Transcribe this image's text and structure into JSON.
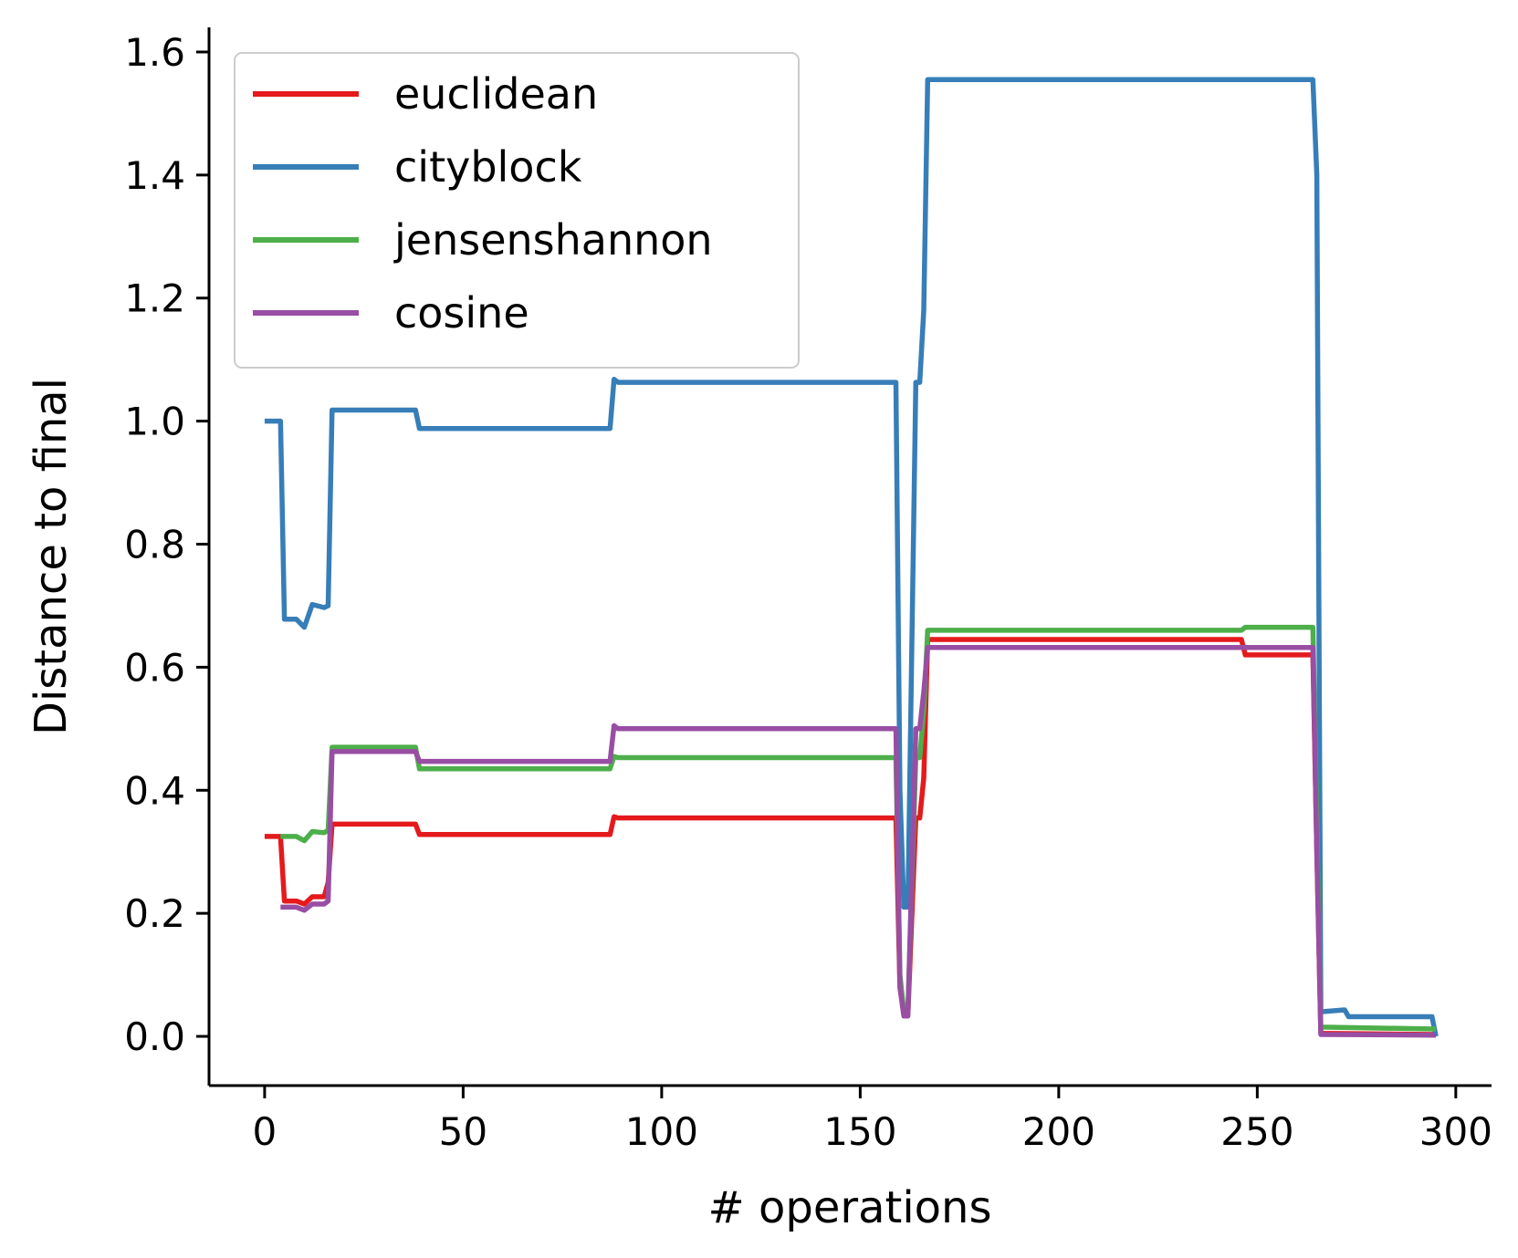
{
  "chart_data": {
    "type": "line",
    "title": "",
    "xlabel": "# operations",
    "ylabel": "Distance to final",
    "xlim": [
      -14,
      309
    ],
    "ylim": [
      -0.08,
      1.64
    ],
    "xticks": [
      0,
      50,
      100,
      150,
      200,
      250,
      300
    ],
    "yticks": [
      0.0,
      0.2,
      0.4,
      0.6,
      0.8,
      1.0,
      1.2,
      1.4,
      1.6
    ],
    "xtick_labels": [
      "0",
      "50",
      "100",
      "150",
      "200",
      "250",
      "300"
    ],
    "ytick_labels": [
      "0.0",
      "0.2",
      "0.4",
      "0.6",
      "0.8",
      "1.0",
      "1.2",
      "1.4",
      "1.6"
    ],
    "grid": false,
    "legend_position": "top-left",
    "series": [
      {
        "name": "euclidean",
        "color": "#e41a1c",
        "x": [
          0,
          4,
          5,
          8,
          10,
          12,
          15,
          16,
          17,
          38,
          39,
          87,
          88,
          89,
          159,
          160,
          161,
          162,
          164,
          165,
          166,
          167,
          246,
          247,
          264,
          265,
          266,
          295
        ],
        "y": [
          0.325,
          0.325,
          0.22,
          0.22,
          0.215,
          0.227,
          0.227,
          0.25,
          0.345,
          0.345,
          0.328,
          0.328,
          0.357,
          0.355,
          0.355,
          0.08,
          0.035,
          0.035,
          0.355,
          0.355,
          0.42,
          0.645,
          0.645,
          0.62,
          0.62,
          0.3,
          0.005,
          0.003
        ]
      },
      {
        "name": "cityblock",
        "color": "#377eb8",
        "x": [
          0,
          4,
          5,
          8,
          10,
          12,
          15,
          16,
          17,
          38,
          39,
          87,
          88,
          89,
          159,
          160,
          161,
          162,
          164,
          165,
          166,
          167,
          264,
          265,
          266,
          272,
          273,
          294,
          295
        ],
        "y": [
          1.0,
          1.0,
          0.678,
          0.678,
          0.665,
          0.702,
          0.697,
          0.7,
          1.018,
          1.018,
          0.988,
          0.988,
          1.068,
          1.063,
          1.063,
          0.4,
          0.21,
          0.21,
          1.063,
          1.063,
          1.18,
          1.555,
          1.555,
          1.4,
          0.04,
          0.043,
          0.032,
          0.032,
          0.0
        ]
      },
      {
        "name": "jensenshannon",
        "color": "#4daf4a",
        "x": [
          4,
          8,
          10,
          12,
          15,
          16,
          17,
          38,
          39,
          87,
          88,
          89,
          159,
          160,
          161,
          162,
          164,
          165,
          166,
          167,
          246,
          247,
          264,
          265,
          266,
          295
        ],
        "y": [
          0.325,
          0.325,
          0.318,
          0.333,
          0.331,
          0.335,
          0.47,
          0.47,
          0.435,
          0.435,
          0.455,
          0.453,
          0.453,
          0.1,
          0.04,
          0.04,
          0.453,
          0.453,
          0.53,
          0.66,
          0.66,
          0.665,
          0.665,
          0.35,
          0.015,
          0.012
        ]
      },
      {
        "name": "cosine",
        "color": "#984ea3",
        "x": [
          4,
          8,
          10,
          12,
          15,
          16,
          17,
          38,
          39,
          87,
          88,
          89,
          159,
          160,
          161,
          162,
          164,
          165,
          166,
          167,
          264,
          265,
          266,
          295
        ],
        "y": [
          0.21,
          0.21,
          0.205,
          0.215,
          0.215,
          0.22,
          0.463,
          0.463,
          0.447,
          0.447,
          0.505,
          0.5,
          0.5,
          0.08,
          0.033,
          0.033,
          0.5,
          0.5,
          0.56,
          0.632,
          0.632,
          0.3,
          0.003,
          0.002
        ]
      }
    ]
  }
}
